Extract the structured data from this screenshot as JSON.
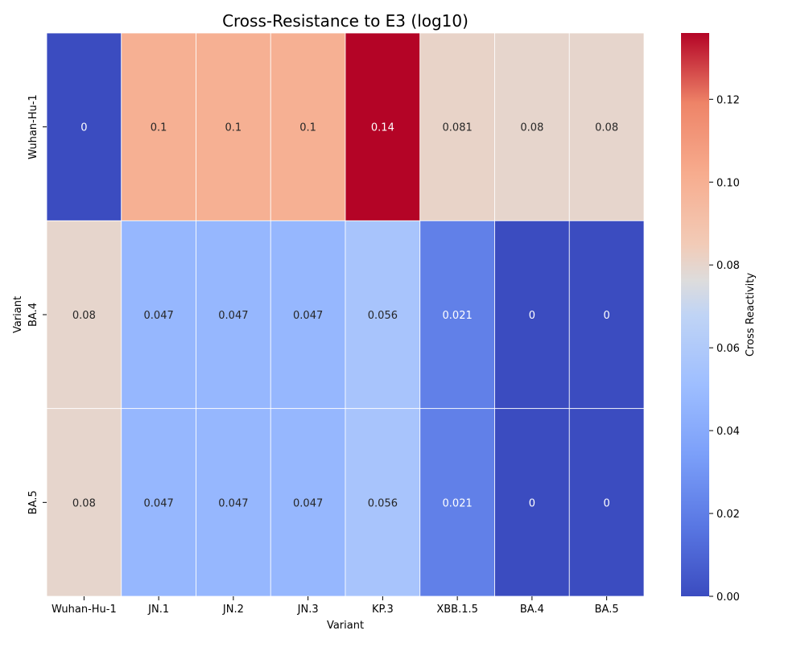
{
  "chart_data": {
    "type": "heatmap",
    "title": "Cross-Resistance to E3 (log10)",
    "xlabel": "Variant",
    "ylabel": "Variant",
    "x_categories": [
      "Wuhan-Hu-1",
      "JN.1",
      "JN.2",
      "JN.3",
      "KP.3",
      "XBB.1.5",
      "BA.4",
      "BA.5"
    ],
    "y_categories": [
      "Wuhan-Hu-1",
      "BA.4",
      "BA.5"
    ],
    "values": [
      [
        0,
        0.1,
        0.1,
        0.1,
        0.14,
        0.081,
        0.08,
        0.08
      ],
      [
        0.08,
        0.047,
        0.047,
        0.047,
        0.056,
        0.021,
        0,
        0
      ],
      [
        0.08,
        0.047,
        0.047,
        0.047,
        0.056,
        0.021,
        0,
        0
      ]
    ],
    "colorbar": {
      "label": "Cross Reactivity",
      "colormap": "coolwarm",
      "range": [
        0,
        0.136
      ],
      "ticks": [
        "0.00",
        "0.02",
        "0.04",
        "0.06",
        "0.08",
        "0.10",
        "0.12"
      ]
    },
    "colors": {
      "low": "#3b4cc0",
      "mid": "#dddddd",
      "high": "#b40426",
      "cell_border": "#ffffff"
    }
  }
}
